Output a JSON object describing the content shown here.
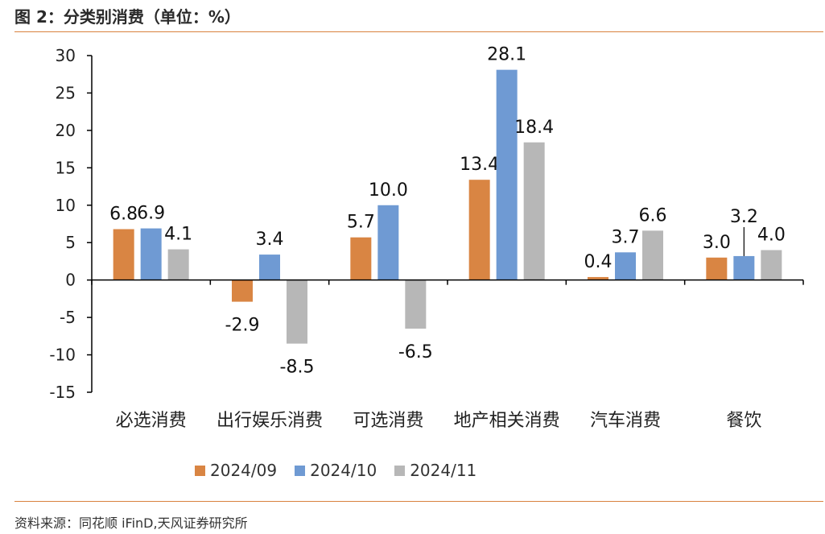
{
  "header": {
    "title": "图 2：分类别消费（单位：%）"
  },
  "footer": {
    "source": "资料来源：同花顺 iFinD,天风证券研究所"
  },
  "colors": {
    "s2024_09": "#d98543",
    "s2024_10": "#6f9ad3",
    "s2024_11": "#b7b7b7",
    "rule": "#d9823f"
  },
  "chart_data": {
    "type": "bar",
    "categories": [
      "必选消费",
      "出行娱乐消费",
      "可选消费",
      "地产相关消费",
      "汽车消费",
      "餐饮"
    ],
    "series": [
      {
        "name": "2024/09",
        "values": [
          6.8,
          -2.9,
          5.7,
          13.4,
          0.4,
          3.0
        ]
      },
      {
        "name": "2024/10",
        "values": [
          6.9,
          3.4,
          10.0,
          28.1,
          3.7,
          3.2
        ]
      },
      {
        "name": "2024/11",
        "values": [
          4.1,
          -8.5,
          -6.5,
          18.4,
          6.6,
          4.0
        ]
      }
    ],
    "data_labels": [
      [
        "6.8",
        "-2.9",
        "5.7",
        "13.4",
        "0.4",
        "3.0"
      ],
      [
        "6.9",
        "3.4",
        "10.0",
        "28.1",
        "3.7",
        "3.2"
      ],
      [
        "4.1",
        "-8.5",
        "-6.5",
        "18.4",
        "6.6",
        "4.0"
      ]
    ],
    "ylim": [
      -15,
      30
    ],
    "yticks": [
      "-15",
      "-10",
      "-5",
      "0",
      "5",
      "10",
      "15",
      "20",
      "25",
      "30"
    ],
    "grid": false,
    "legend": "bottom"
  }
}
